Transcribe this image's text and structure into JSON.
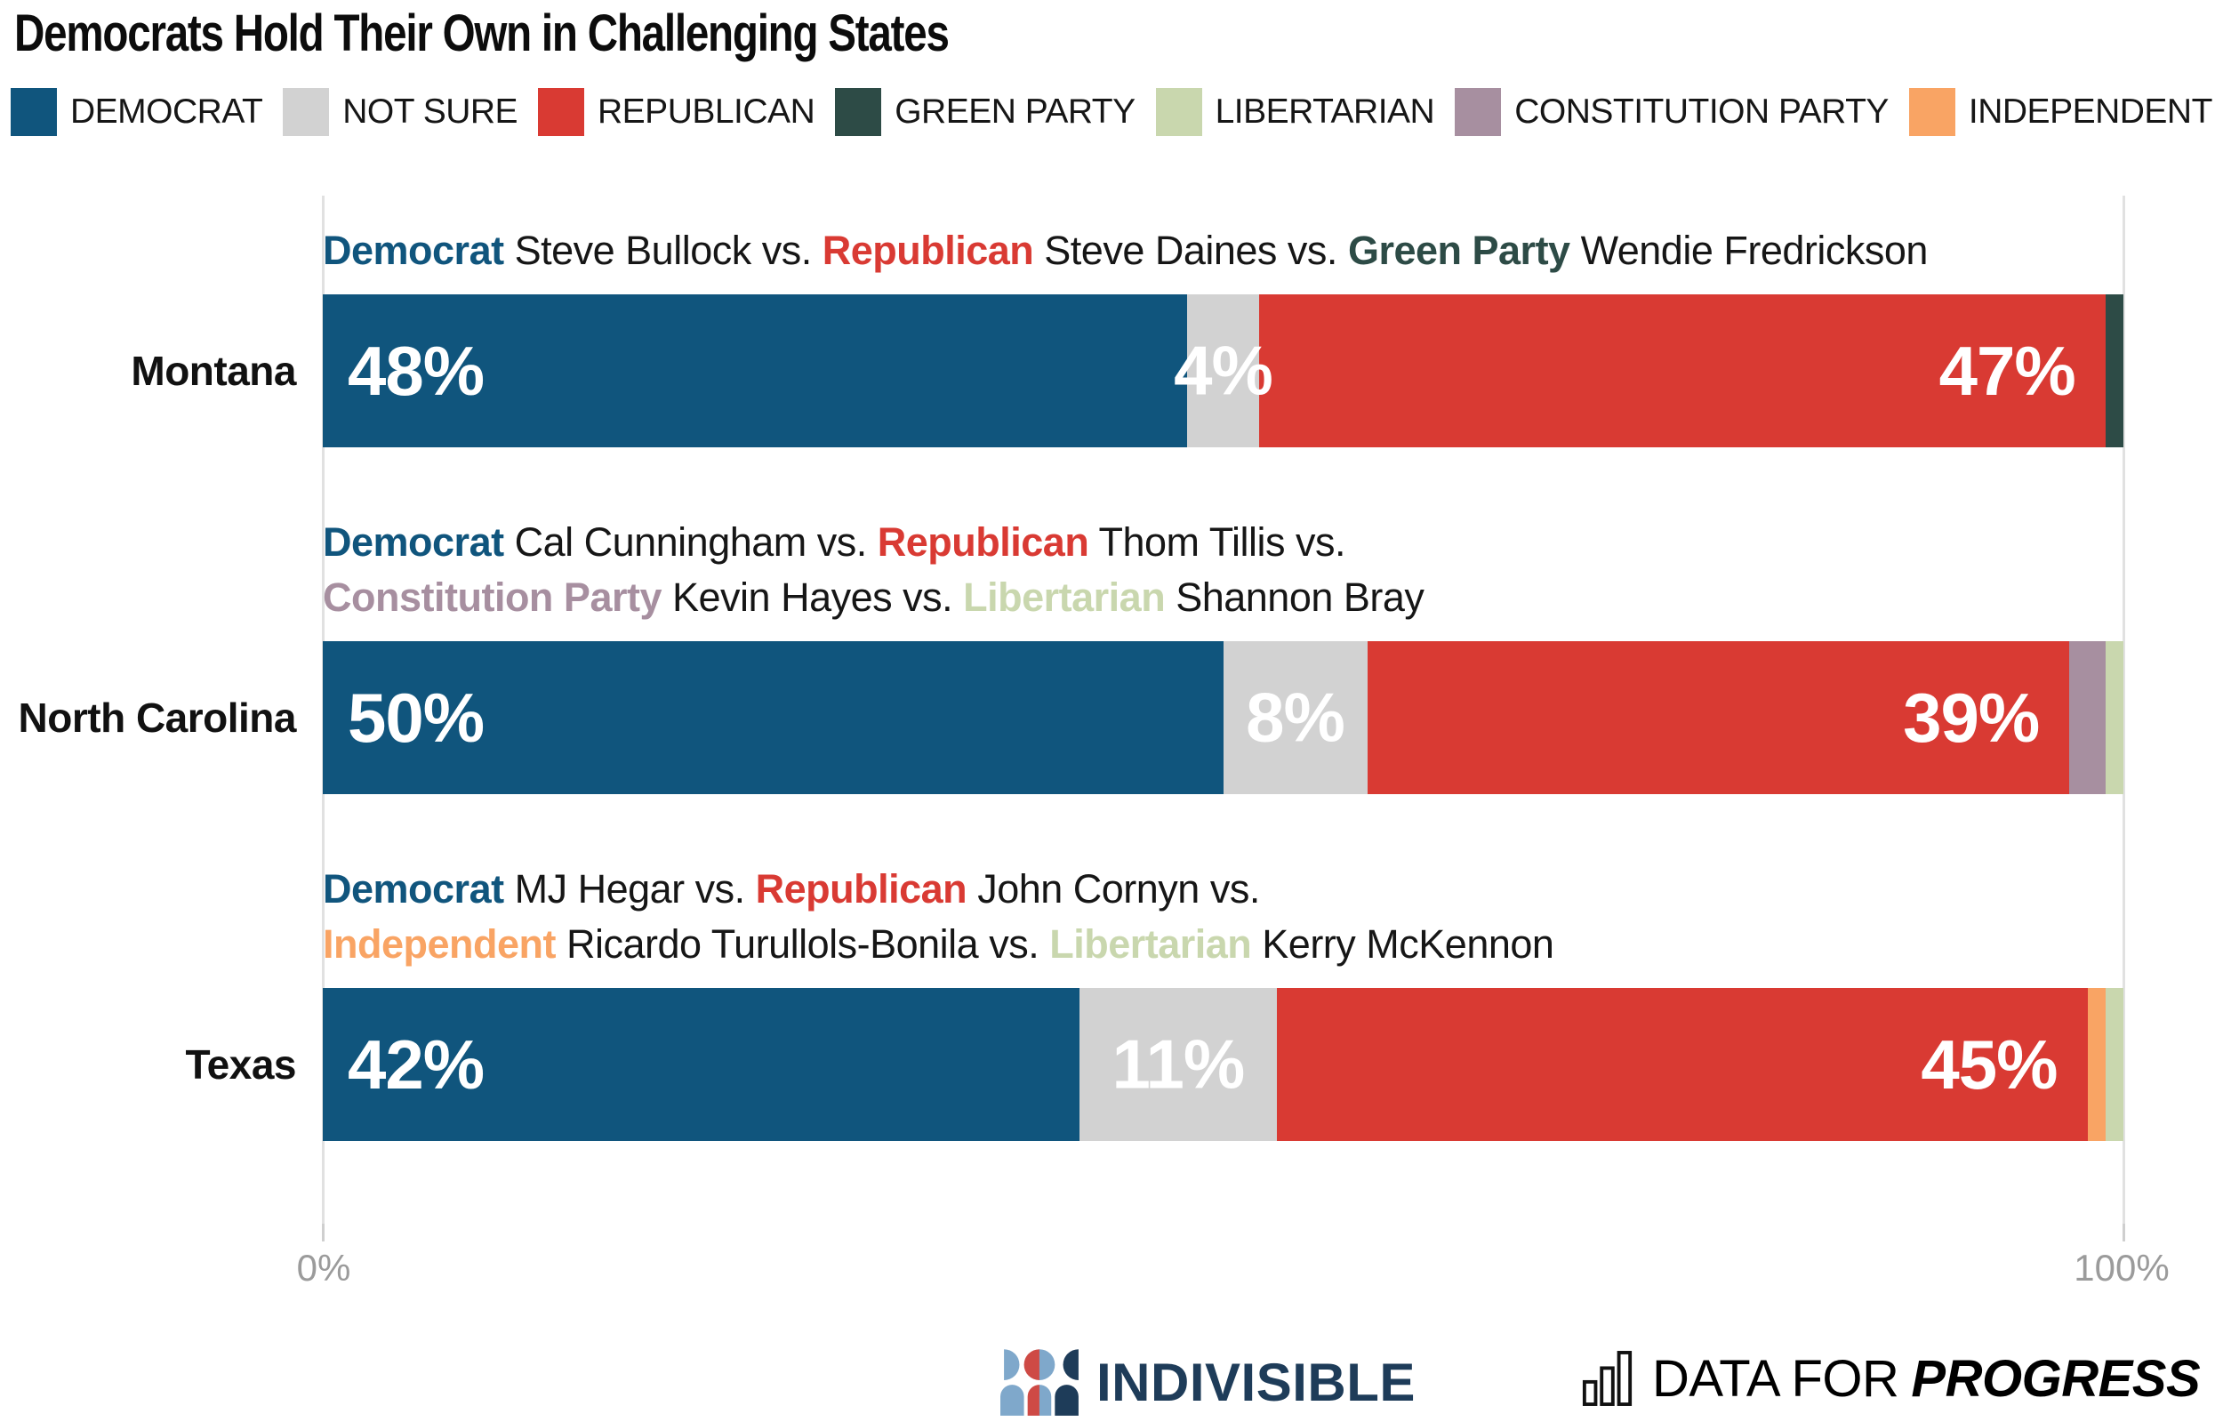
{
  "title": "Democrats Hold Their Own in Challenging States",
  "colors": {
    "democrat": "#10557D",
    "not_sure": "#D2D2D2",
    "republican": "#D93A33",
    "green_party": "#2D4B46",
    "libertarian": "#C9D7AE",
    "constitution_party": "#A78FA0",
    "independent": "#F9A464",
    "brand_navy": "#1E3C59",
    "brand_lightblue": "#7FA8CB",
    "brand_red": "#CE4A45",
    "axis_label": "#9B9B9B",
    "gridline": "#E1E1E1",
    "tick": "#CFCFCF"
  },
  "legend": [
    {
      "key": "democrat",
      "label": "DEMOCRAT"
    },
    {
      "key": "not_sure",
      "label": "NOT SURE"
    },
    {
      "key": "republican",
      "label": "REPUBLICAN"
    },
    {
      "key": "green_party",
      "label": "GREEN PARTY"
    },
    {
      "key": "libertarian",
      "label": "LIBERTARIAN"
    },
    {
      "key": "constitution_party",
      "label": "CONSTITUTION PARTY"
    },
    {
      "key": "independent",
      "label": "INDEPENDENT"
    }
  ],
  "chart_data": {
    "type": "bar",
    "orientation": "horizontal",
    "stacked": true,
    "unit": "percent",
    "x_axis": {
      "ticks": [
        "0%",
        "100%"
      ],
      "range": [
        0,
        100
      ],
      "grid": true
    },
    "legend_position": "top",
    "rows": [
      {
        "state": "Montana",
        "race": [
          [
            {
              "text": "Democrat",
              "color": "democrat"
            },
            {
              "text": " Steve Bullock vs. "
            },
            {
              "text": "Republican",
              "color": "republican"
            },
            {
              "text": " Steve Daines vs. "
            },
            {
              "text": "Green Party",
              "color": "green_party"
            },
            {
              "text": " Wendie Fredrickson"
            }
          ]
        ],
        "segments": [
          {
            "party": "DEMOCRAT",
            "key": "democrat",
            "value": 48,
            "label": "48%",
            "align": "left"
          },
          {
            "party": "NOT SURE",
            "key": "not_sure",
            "value": 4,
            "label": "4%",
            "align": "center"
          },
          {
            "party": "REPUBLICAN",
            "key": "republican",
            "value": 47,
            "label": "47%",
            "align": "right"
          },
          {
            "party": "GREEN PARTY",
            "key": "green_party",
            "value": 1,
            "label": "",
            "align": "center"
          }
        ]
      },
      {
        "state": "North Carolina",
        "race": [
          [
            {
              "text": "Democrat",
              "color": "democrat"
            },
            {
              "text": " Cal Cunningham vs. "
            },
            {
              "text": "Republican",
              "color": "republican"
            },
            {
              "text": " Thom Tillis vs."
            }
          ],
          [
            {
              "text": "Constitution Party",
              "color": "constitution_party"
            },
            {
              "text": " Kevin Hayes vs. "
            },
            {
              "text": "Libertarian",
              "color": "libertarian"
            },
            {
              "text": " Shannon Bray"
            }
          ]
        ],
        "segments": [
          {
            "party": "DEMOCRAT",
            "key": "democrat",
            "value": 50,
            "label": "50%",
            "align": "left"
          },
          {
            "party": "NOT SURE",
            "key": "not_sure",
            "value": 8,
            "label": "8%",
            "align": "center"
          },
          {
            "party": "REPUBLICAN",
            "key": "republican",
            "value": 39,
            "label": "39%",
            "align": "right"
          },
          {
            "party": "CONSTITUTION PARTY",
            "key": "constitution_party",
            "value": 2,
            "label": "",
            "align": "center"
          },
          {
            "party": "LIBERTARIAN",
            "key": "libertarian",
            "value": 1,
            "label": "",
            "align": "center"
          }
        ]
      },
      {
        "state": "Texas",
        "race": [
          [
            {
              "text": "Democrat",
              "color": "democrat"
            },
            {
              "text": " MJ Hegar vs. "
            },
            {
              "text": "Republican",
              "color": "republican"
            },
            {
              "text": " John Cornyn vs."
            }
          ],
          [
            {
              "text": "Independent",
              "color": "independent"
            },
            {
              "text": " Ricardo Turullols-Bonila vs. "
            },
            {
              "text": "Libertarian",
              "color": "libertarian"
            },
            {
              "text": " Kerry McKennon"
            }
          ]
        ],
        "segments": [
          {
            "party": "DEMOCRAT",
            "key": "democrat",
            "value": 42,
            "label": "42%",
            "align": "left"
          },
          {
            "party": "NOT SURE",
            "key": "not_sure",
            "value": 11,
            "label": "11%",
            "align": "center"
          },
          {
            "party": "REPUBLICAN",
            "key": "republican",
            "value": 45,
            "label": "45%",
            "align": "right"
          },
          {
            "party": "INDEPENDENT",
            "key": "independent",
            "value": 1,
            "label": "",
            "align": "center"
          },
          {
            "party": "LIBERTARIAN",
            "key": "libertarian",
            "value": 1,
            "label": "",
            "align": "center"
          }
        ]
      }
    ]
  },
  "footer": {
    "indivisible_label": "INDIVISIBLE",
    "dfp_label_regular": "DATA FOR",
    "dfp_label_bold": "PROGRESS"
  }
}
